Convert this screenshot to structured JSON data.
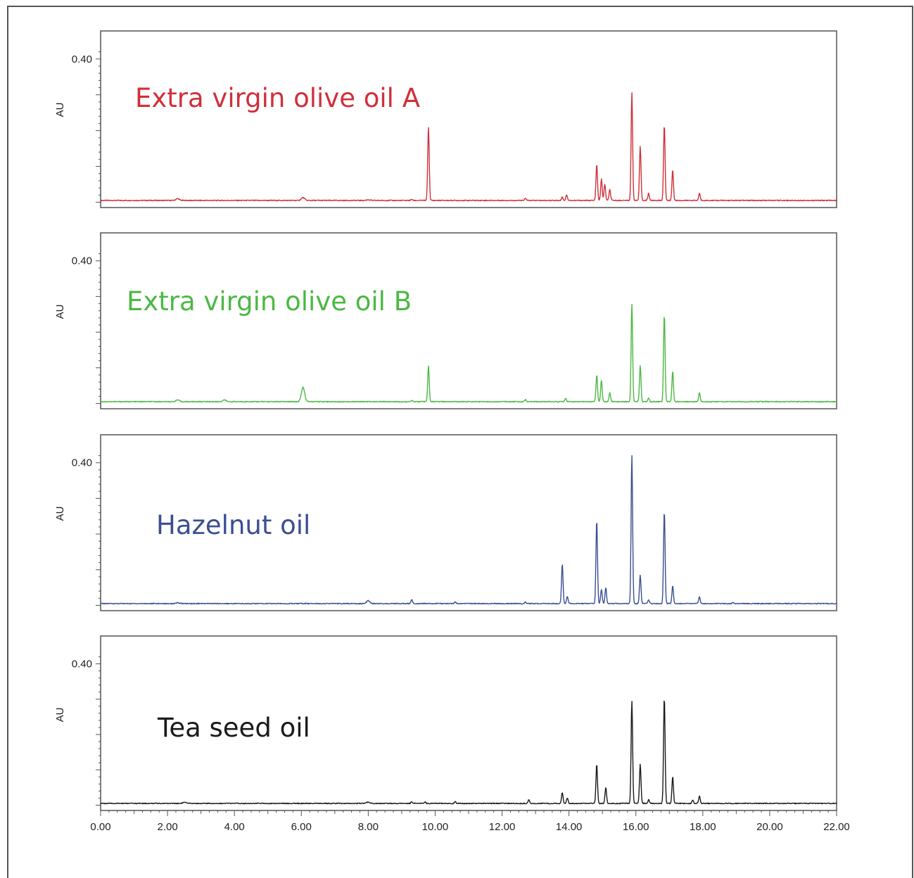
{
  "chart_data": [
    {
      "type": "line",
      "title": "Extra virgin olive oil A",
      "ylabel": "AU",
      "ytick_label": "0.40",
      "xlim": [
        0,
        22
      ],
      "ylim": [
        0,
        0.44
      ],
      "color": "#d0303a",
      "baseline": 0.01,
      "peaks": [
        {
          "x": 2.3,
          "y": 0.005
        },
        {
          "x": 6.05,
          "y": 0.008
        },
        {
          "x": 8.0,
          "y": 0.002
        },
        {
          "x": 9.3,
          "y": 0.003
        },
        {
          "x": 9.8,
          "y": 0.205
        },
        {
          "x": 12.7,
          "y": 0.006
        },
        {
          "x": 13.8,
          "y": 0.01
        },
        {
          "x": 13.93,
          "y": 0.016
        },
        {
          "x": 14.83,
          "y": 0.1
        },
        {
          "x": 14.97,
          "y": 0.06
        },
        {
          "x": 15.07,
          "y": 0.045
        },
        {
          "x": 15.22,
          "y": 0.03
        },
        {
          "x": 15.88,
          "y": 0.3
        },
        {
          "x": 16.13,
          "y": 0.15
        },
        {
          "x": 16.38,
          "y": 0.02
        },
        {
          "x": 16.85,
          "y": 0.21
        },
        {
          "x": 17.1,
          "y": 0.085
        },
        {
          "x": 17.9,
          "y": 0.02
        }
      ]
    },
    {
      "type": "line",
      "title": "Extra virgin olive oil B",
      "ylabel": "AU",
      "ytick_label": "0.40",
      "xlim": [
        0,
        22
      ],
      "ylim": [
        0,
        0.44
      ],
      "color": "#4cb844",
      "baseline": 0.01,
      "peaks": [
        {
          "x": 2.3,
          "y": 0.005
        },
        {
          "x": 3.7,
          "y": 0.005
        },
        {
          "x": 6.05,
          "y": 0.04
        },
        {
          "x": 9.3,
          "y": 0.003
        },
        {
          "x": 9.8,
          "y": 0.1
        },
        {
          "x": 12.7,
          "y": 0.006
        },
        {
          "x": 13.9,
          "y": 0.01
        },
        {
          "x": 14.83,
          "y": 0.075
        },
        {
          "x": 14.97,
          "y": 0.06
        },
        {
          "x": 15.22,
          "y": 0.025
        },
        {
          "x": 15.88,
          "y": 0.275
        },
        {
          "x": 16.13,
          "y": 0.1
        },
        {
          "x": 16.38,
          "y": 0.01
        },
        {
          "x": 16.85,
          "y": 0.245
        },
        {
          "x": 17.1,
          "y": 0.085
        },
        {
          "x": 17.9,
          "y": 0.025
        }
      ]
    },
    {
      "type": "line",
      "title": "Hazelnut oil",
      "ylabel": "AU",
      "ytick_label": "0.40",
      "xlim": [
        0,
        22
      ],
      "ylim": [
        0,
        0.44
      ],
      "color": "#3b4f92",
      "baseline": 0.01,
      "peaks": [
        {
          "x": 2.3,
          "y": 0.002
        },
        {
          "x": 8.0,
          "y": 0.008
        },
        {
          "x": 9.3,
          "y": 0.012
        },
        {
          "x": 10.6,
          "y": 0.005
        },
        {
          "x": 12.7,
          "y": 0.004
        },
        {
          "x": 13.8,
          "y": 0.11
        },
        {
          "x": 13.95,
          "y": 0.02
        },
        {
          "x": 14.83,
          "y": 0.235
        },
        {
          "x": 14.97,
          "y": 0.04
        },
        {
          "x": 15.1,
          "y": 0.045
        },
        {
          "x": 15.88,
          "y": 0.415
        },
        {
          "x": 16.13,
          "y": 0.08
        },
        {
          "x": 16.38,
          "y": 0.01
        },
        {
          "x": 16.85,
          "y": 0.26
        },
        {
          "x": 17.1,
          "y": 0.05
        },
        {
          "x": 17.9,
          "y": 0.02
        },
        {
          "x": 18.9,
          "y": 0.003
        }
      ]
    },
    {
      "type": "line",
      "title": "Tea seed oil",
      "ylabel": "AU",
      "ytick_label": "0.40",
      "xlim": [
        0,
        22
      ],
      "ylim": [
        0,
        0.44
      ],
      "color": "#1a1a1a",
      "xtick_labels": [
        "0.00",
        "2.00",
        "4.00",
        "6.00",
        "8.00",
        "10.00",
        "12.00",
        "14.00",
        "16.00",
        "18.00",
        "20.00",
        "22.00"
      ],
      "baseline": 0.01,
      "peaks": [
        {
          "x": 2.5,
          "y": 0.003
        },
        {
          "x": 8.0,
          "y": 0.004
        },
        {
          "x": 9.3,
          "y": 0.005
        },
        {
          "x": 9.7,
          "y": 0.004
        },
        {
          "x": 10.6,
          "y": 0.005
        },
        {
          "x": 12.8,
          "y": 0.01
        },
        {
          "x": 13.8,
          "y": 0.03
        },
        {
          "x": 13.95,
          "y": 0.015
        },
        {
          "x": 14.83,
          "y": 0.11
        },
        {
          "x": 15.1,
          "y": 0.045
        },
        {
          "x": 15.88,
          "y": 0.29
        },
        {
          "x": 16.13,
          "y": 0.11
        },
        {
          "x": 16.38,
          "y": 0.01
        },
        {
          "x": 16.85,
          "y": 0.3
        },
        {
          "x": 17.1,
          "y": 0.075
        },
        {
          "x": 17.7,
          "y": 0.01
        },
        {
          "x": 17.9,
          "y": 0.02
        }
      ]
    }
  ]
}
